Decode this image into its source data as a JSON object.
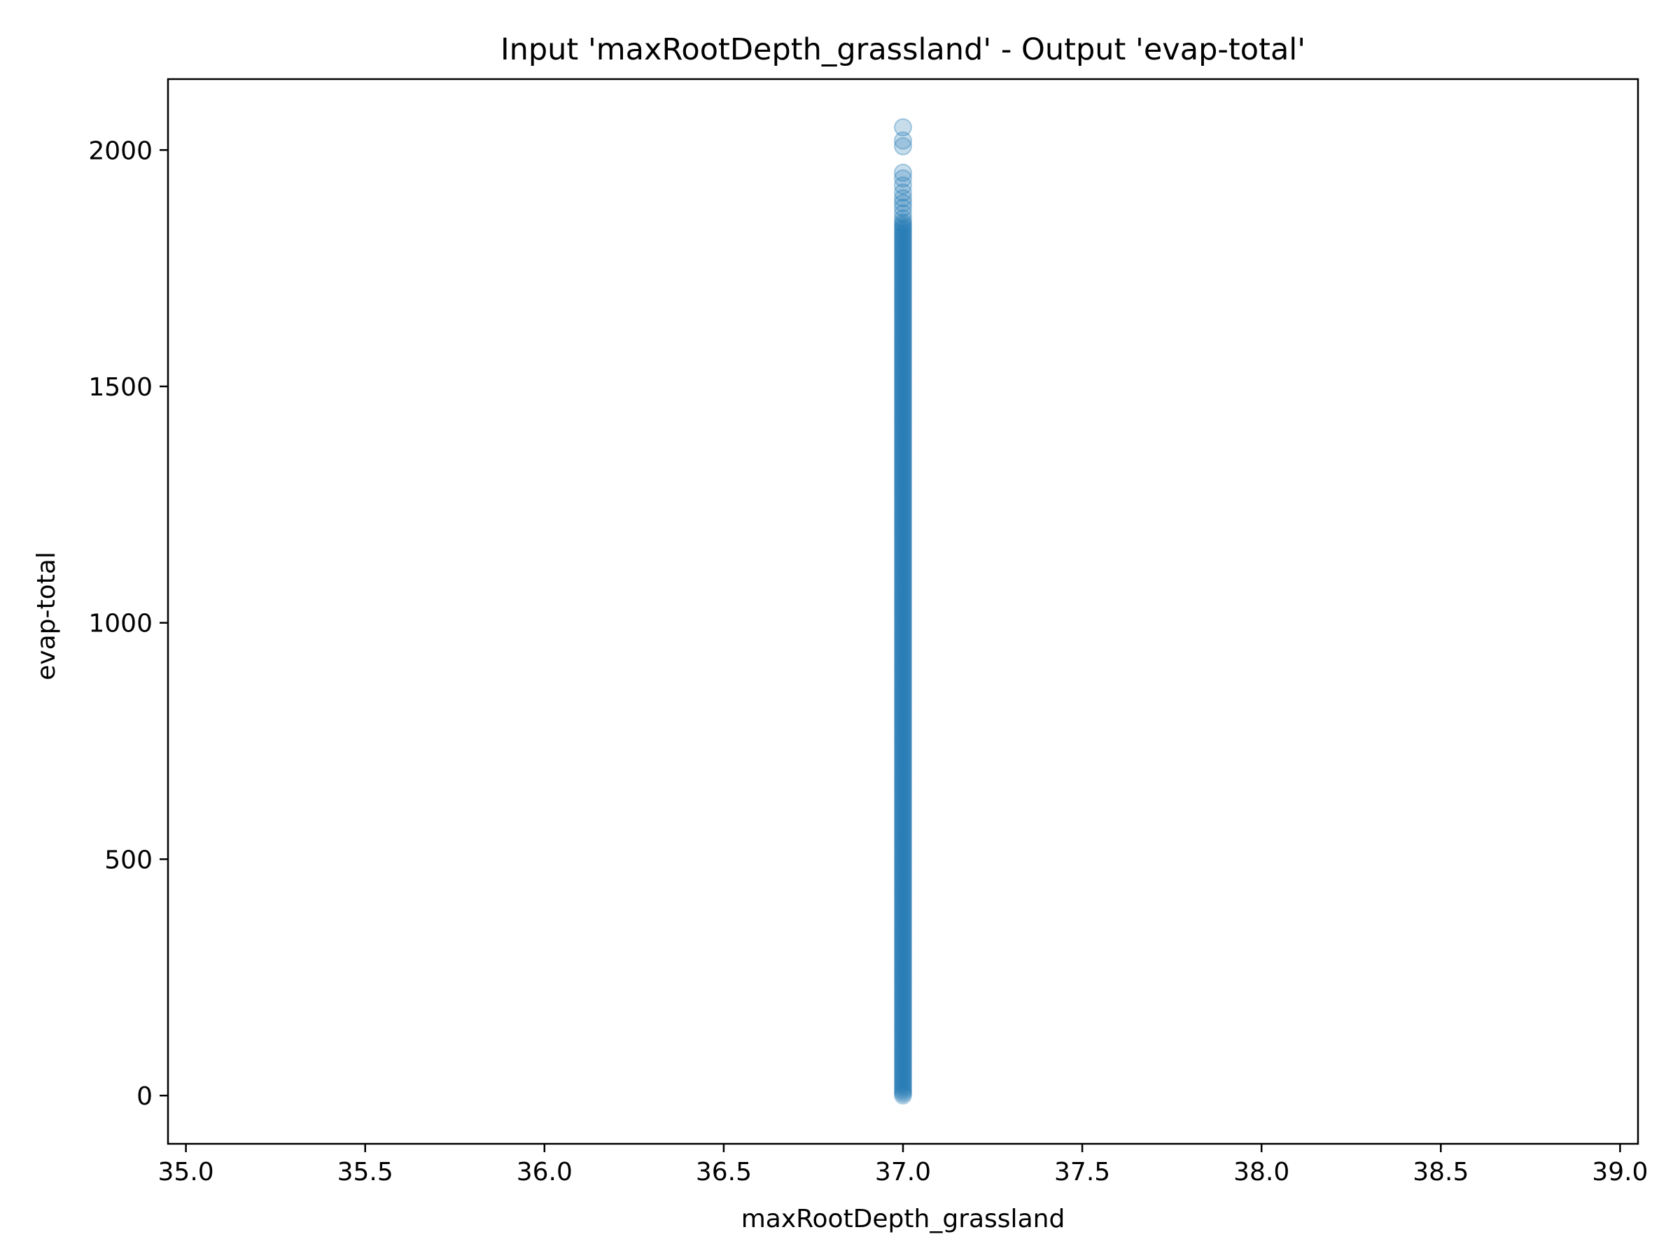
{
  "chart_data": {
    "type": "scatter",
    "title": "Input 'maxRootDepth_grassland' - Output 'evap-total'",
    "xlabel": "maxRootDepth_grassland",
    "ylabel": "evap-total",
    "xlim": [
      34.95,
      39.05
    ],
    "ylim": [
      -102,
      2150
    ],
    "x_ticks": [
      35.0,
      35.5,
      36.0,
      36.5,
      37.0,
      37.5,
      38.0,
      38.5,
      39.0
    ],
    "x_tick_labels": [
      "35.0",
      "35.5",
      "36.0",
      "36.5",
      "37.0",
      "37.5",
      "38.0",
      "38.5",
      "39.0"
    ],
    "y_ticks": [
      0,
      500,
      1000,
      1500,
      2000
    ],
    "y_tick_labels": [
      "0",
      "500",
      "1000",
      "1500",
      "2000"
    ],
    "grid": false,
    "legend": null,
    "series": [
      {
        "color": "#1f77b4",
        "marker_alpha": 0.25,
        "x_constant": 37.0,
        "dense_y_range": [
          0,
          1850
        ],
        "points": [
          {
            "x": 37.0,
            "y": 2048
          },
          {
            "x": 37.0,
            "y": 2020
          },
          {
            "x": 37.0,
            "y": 2008
          },
          {
            "x": 37.0,
            "y": 1952
          },
          {
            "x": 37.0,
            "y": 1940
          },
          {
            "x": 37.0,
            "y": 1925
          },
          {
            "x": 37.0,
            "y": 1910
          },
          {
            "x": 37.0,
            "y": 1898
          },
          {
            "x": 37.0,
            "y": 1888
          },
          {
            "x": 37.0,
            "y": 1878
          },
          {
            "x": 37.0,
            "y": 1866
          },
          {
            "x": 37.0,
            "y": 1855
          }
        ]
      }
    ]
  }
}
